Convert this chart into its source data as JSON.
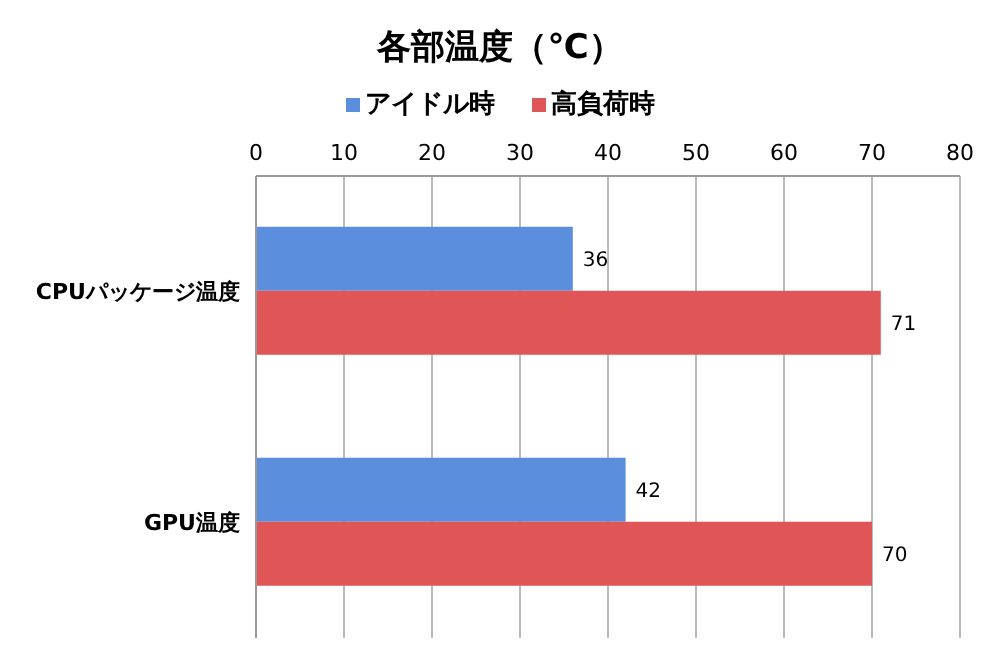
{
  "chart_data": {
    "type": "bar",
    "orientation": "horizontal",
    "title": "各部温度（℃）",
    "categories": [
      "CPUパッケージ温度",
      "GPU温度"
    ],
    "series": [
      {
        "name": "アイドル時",
        "color": "#5b8fdd",
        "values": [
          36,
          42
        ]
      },
      {
        "name": "高負荷時",
        "color": "#e05656",
        "values": [
          71,
          70
        ]
      }
    ],
    "xlim": [
      0,
      80
    ],
    "xticks": [
      0,
      10,
      20,
      30,
      40,
      50,
      60,
      70,
      80
    ],
    "grid": "x",
    "legend": "top",
    "data_labels": true
  }
}
